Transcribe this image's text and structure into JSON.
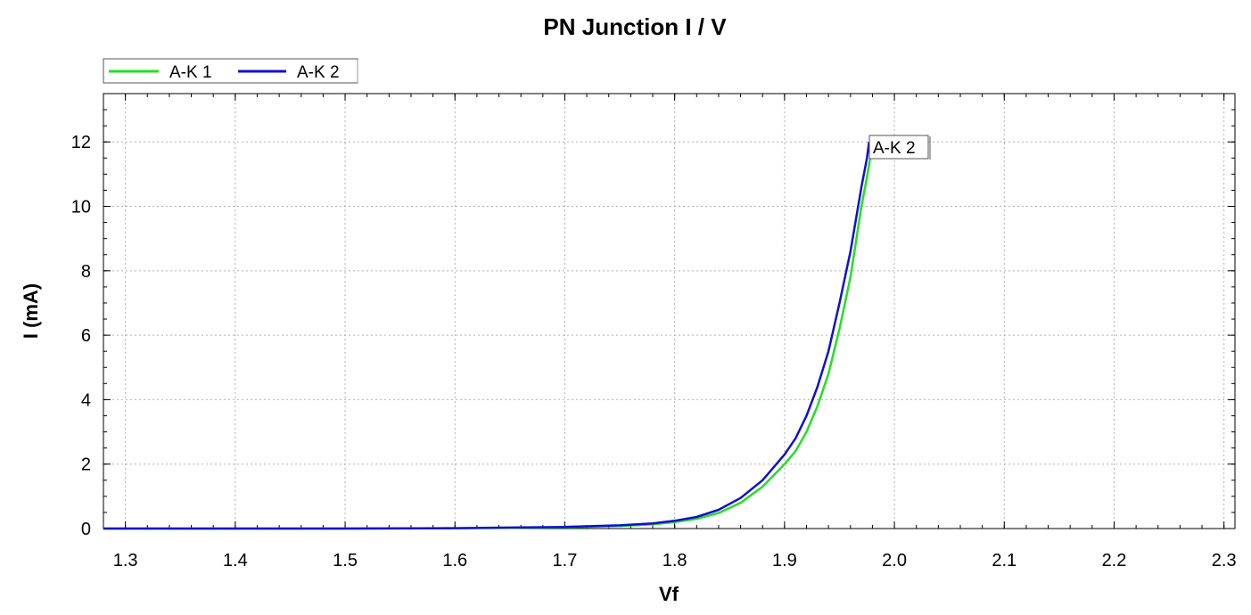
{
  "chart_data": {
    "type": "line",
    "title": "PN Junction I / V",
    "xlabel": "Vf",
    "ylabel": "I (mA)",
    "xlim": [
      1.28,
      2.31
    ],
    "ylim": [
      0,
      13.5
    ],
    "x_ticks": [
      "1.3",
      "1.4",
      "1.5",
      "1.6",
      "1.7",
      "1.8",
      "1.9",
      "2.0",
      "2.1",
      "2.2",
      "2.3"
    ],
    "y_ticks": [
      "0",
      "2",
      "4",
      "6",
      "8",
      "10",
      "12"
    ],
    "grid": true,
    "legend_position": "top-left",
    "series": [
      {
        "name": "A-K 1",
        "color": "#22e022",
        "points": [
          [
            1.28,
            0
          ],
          [
            1.5,
            0
          ],
          [
            1.6,
            0.01
          ],
          [
            1.65,
            0.02
          ],
          [
            1.7,
            0.04
          ],
          [
            1.75,
            0.08
          ],
          [
            1.78,
            0.13
          ],
          [
            1.8,
            0.2
          ],
          [
            1.82,
            0.3
          ],
          [
            1.84,
            0.48
          ],
          [
            1.86,
            0.8
          ],
          [
            1.88,
            1.3
          ],
          [
            1.9,
            2.0
          ],
          [
            1.91,
            2.4
          ],
          [
            1.92,
            3.0
          ],
          [
            1.93,
            3.8
          ],
          [
            1.94,
            4.8
          ],
          [
            1.95,
            6.2
          ],
          [
            1.96,
            7.8
          ],
          [
            1.97,
            10.0
          ],
          [
            1.975,
            10.9
          ],
          [
            1.98,
            11.9
          ]
        ]
      },
      {
        "name": "A-K 2",
        "color": "#1010cc",
        "points": [
          [
            1.28,
            0
          ],
          [
            1.5,
            0
          ],
          [
            1.6,
            0.01
          ],
          [
            1.65,
            0.03
          ],
          [
            1.7,
            0.05
          ],
          [
            1.75,
            0.1
          ],
          [
            1.78,
            0.16
          ],
          [
            1.8,
            0.24
          ],
          [
            1.82,
            0.36
          ],
          [
            1.84,
            0.58
          ],
          [
            1.86,
            0.95
          ],
          [
            1.88,
            1.5
          ],
          [
            1.9,
            2.3
          ],
          [
            1.91,
            2.8
          ],
          [
            1.92,
            3.5
          ],
          [
            1.93,
            4.4
          ],
          [
            1.94,
            5.5
          ],
          [
            1.95,
            7.0
          ],
          [
            1.96,
            8.6
          ],
          [
            1.97,
            10.6
          ],
          [
            1.975,
            11.5
          ],
          [
            1.977,
            12.0
          ]
        ]
      }
    ],
    "annotation": {
      "text": "A-K 2",
      "x": 1.977,
      "y": 12.0
    }
  }
}
